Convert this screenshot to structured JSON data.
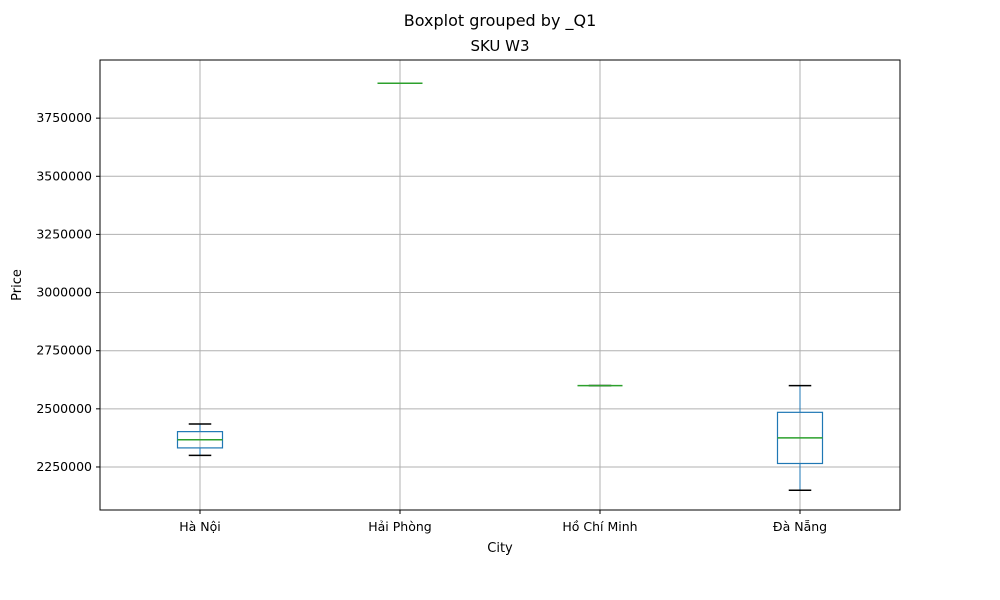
{
  "chart_data": {
    "type": "box",
    "title": "Boxplot grouped by _Q1",
    "subtitle": "SKU W3",
    "xlabel": "City",
    "ylabel": "Price",
    "ylim": [
      2065000,
      4000000
    ],
    "yticks": [
      2250000,
      2500000,
      2750000,
      3000000,
      3250000,
      3500000,
      3750000
    ],
    "grid": true,
    "categories": [
      "Hà Nội",
      "Hải Phòng",
      "Hồ Chí Minh",
      "Đà Nẵng"
    ],
    "boxes": [
      {
        "whislo": 2300000,
        "q1": 2332000,
        "med": 2367000,
        "q3": 2402000,
        "whishi": 2435000
      },
      {
        "whislo": 3900000,
        "q1": 3900000,
        "med": 3900000,
        "q3": 3900000,
        "whishi": 3900000
      },
      {
        "whislo": 2600000,
        "q1": 2600000,
        "med": 2600000,
        "q3": 2600000,
        "whishi": 2600000
      },
      {
        "whislo": 2150000,
        "q1": 2265000,
        "med": 2375000,
        "q3": 2485000,
        "whishi": 2600000
      }
    ],
    "colors": {
      "box": "#1f77b4",
      "median": "#2ca02c",
      "whisker_cap": "#000000",
      "grid": "#b0b0b0",
      "axes": "#000000"
    }
  }
}
